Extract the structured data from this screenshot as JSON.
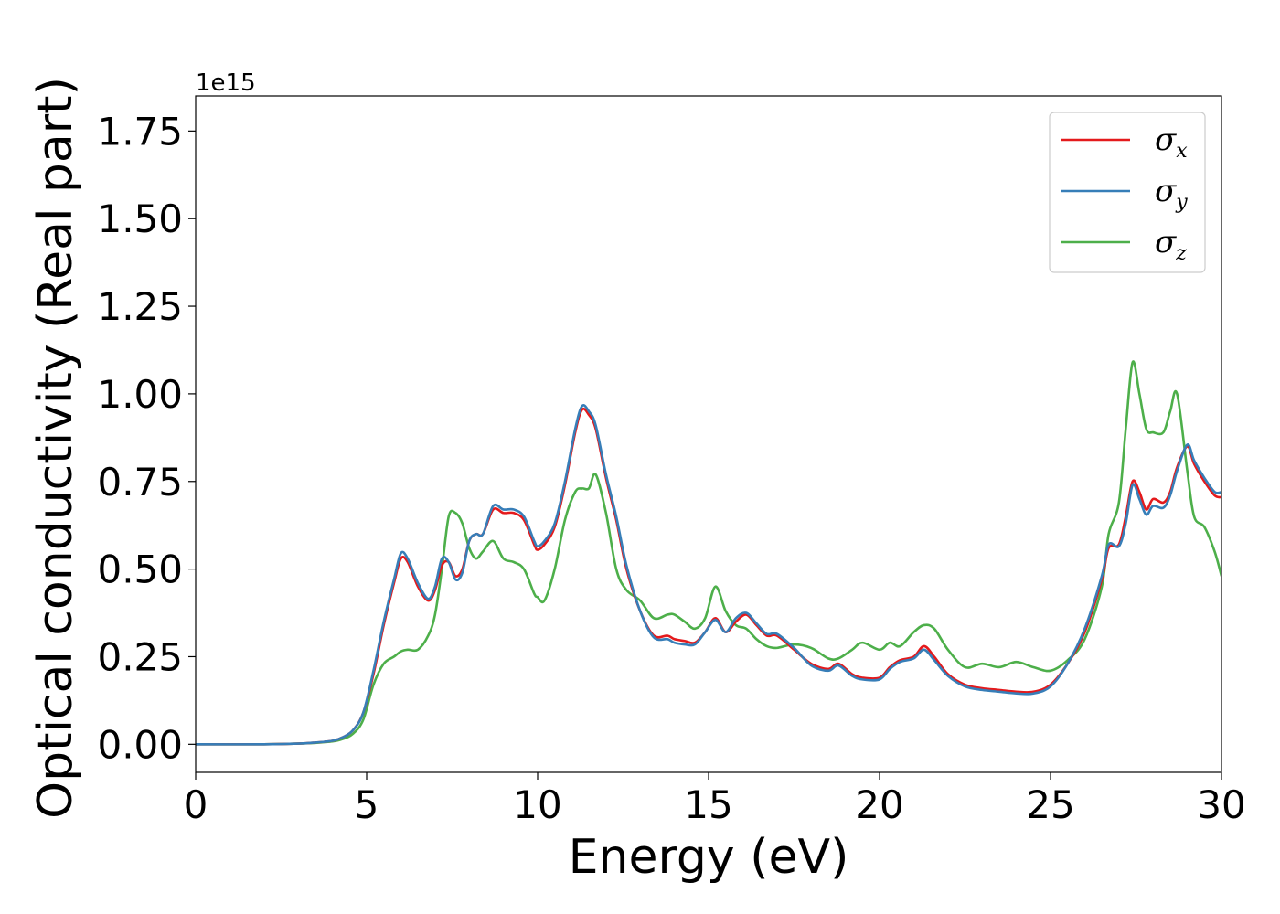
{
  "chart_data": {
    "type": "line",
    "xlabel": "Energy (eV)",
    "ylabel": "Optical conductivity (Real part)",
    "y_offset_text": "1e15",
    "xlim": [
      0,
      30
    ],
    "ylim": [
      -0.08,
      1.85
    ],
    "y_scale_factor": 1000000000000000.0,
    "x_ticks": [
      0,
      5,
      10,
      15,
      20,
      25,
      30
    ],
    "y_ticks": [
      0.0,
      0.25,
      0.5,
      0.75,
      1.0,
      1.25,
      1.5,
      1.75
    ],
    "x_tick_labels": [
      "0",
      "5",
      "10",
      "15",
      "20",
      "25",
      "30"
    ],
    "y_tick_labels": [
      "0.00",
      "0.25",
      "0.50",
      "0.75",
      "1.00",
      "1.25",
      "1.50",
      "1.75"
    ],
    "grid": false,
    "legend_position": "top-right",
    "series": [
      {
        "name": "σx",
        "symbol": "σ",
        "subscript": "x",
        "color": "#e41a1c",
        "x": [
          0,
          2,
          3,
          3.5,
          4,
          4.3,
          4.6,
          4.9,
          5.2,
          5.5,
          5.8,
          6.0,
          6.2,
          6.5,
          6.8,
          7.0,
          7.2,
          7.4,
          7.6,
          7.8,
          8.0,
          8.2,
          8.4,
          8.7,
          9.0,
          9.3,
          9.6,
          9.9,
          10.0,
          10.2,
          10.5,
          10.8,
          11.1,
          11.3,
          11.5,
          11.7,
          12.0,
          12.3,
          12.6,
          13.0,
          13.4,
          13.8,
          14.0,
          14.3,
          14.6,
          14.9,
          15.2,
          15.5,
          15.8,
          16.1,
          16.4,
          16.7,
          17.0,
          17.5,
          18.0,
          18.5,
          18.8,
          19.2,
          19.5,
          20.0,
          20.3,
          20.6,
          21.0,
          21.3,
          21.6,
          22.0,
          22.5,
          23.0,
          23.5,
          24.0,
          24.5,
          25.0,
          25.5,
          26.0,
          26.5,
          26.7,
          27.0,
          27.2,
          27.4,
          27.6,
          27.8,
          28.0,
          28.3,
          28.5,
          28.7,
          29.0,
          29.2,
          29.5,
          29.8,
          30.0
        ],
        "y": [
          0,
          0,
          0.002,
          0.005,
          0.01,
          0.02,
          0.04,
          0.09,
          0.2,
          0.34,
          0.46,
          0.53,
          0.52,
          0.45,
          0.41,
          0.44,
          0.51,
          0.52,
          0.48,
          0.5,
          0.58,
          0.6,
          0.6,
          0.67,
          0.66,
          0.66,
          0.64,
          0.57,
          0.555,
          0.57,
          0.62,
          0.74,
          0.89,
          0.955,
          0.94,
          0.9,
          0.76,
          0.64,
          0.5,
          0.38,
          0.31,
          0.31,
          0.3,
          0.295,
          0.29,
          0.32,
          0.36,
          0.32,
          0.35,
          0.37,
          0.34,
          0.31,
          0.31,
          0.27,
          0.23,
          0.215,
          0.23,
          0.2,
          0.19,
          0.19,
          0.22,
          0.24,
          0.25,
          0.28,
          0.25,
          0.2,
          0.17,
          0.16,
          0.155,
          0.15,
          0.15,
          0.17,
          0.23,
          0.32,
          0.47,
          0.56,
          0.57,
          0.65,
          0.75,
          0.72,
          0.67,
          0.7,
          0.69,
          0.72,
          0.79,
          0.85,
          0.8,
          0.75,
          0.71,
          0.705
        ]
      },
      {
        "name": "σy",
        "symbol": "σ",
        "subscript": "y",
        "color": "#377eb8",
        "x": [
          0,
          2,
          3,
          3.5,
          4,
          4.3,
          4.6,
          4.9,
          5.2,
          5.5,
          5.8,
          6.0,
          6.2,
          6.5,
          6.8,
          7.0,
          7.2,
          7.4,
          7.6,
          7.8,
          8.0,
          8.2,
          8.4,
          8.7,
          9.0,
          9.3,
          9.6,
          9.9,
          10.0,
          10.2,
          10.5,
          10.8,
          11.1,
          11.3,
          11.5,
          11.7,
          12.0,
          12.3,
          12.6,
          13.0,
          13.4,
          13.8,
          14.0,
          14.3,
          14.6,
          14.9,
          15.2,
          15.5,
          15.8,
          16.1,
          16.4,
          16.7,
          17.0,
          17.5,
          18.0,
          18.5,
          18.8,
          19.2,
          19.5,
          20.0,
          20.3,
          20.6,
          21.0,
          21.3,
          21.6,
          22.0,
          22.5,
          23.0,
          23.5,
          24.0,
          24.5,
          25.0,
          25.5,
          26.0,
          26.5,
          26.7,
          27.0,
          27.2,
          27.4,
          27.6,
          27.8,
          28.0,
          28.3,
          28.5,
          28.7,
          29.0,
          29.2,
          29.5,
          29.8,
          30.0
        ],
        "y": [
          0,
          0,
          0.002,
          0.005,
          0.01,
          0.02,
          0.04,
          0.09,
          0.21,
          0.35,
          0.47,
          0.545,
          0.53,
          0.46,
          0.415,
          0.45,
          0.53,
          0.52,
          0.47,
          0.49,
          0.58,
          0.6,
          0.6,
          0.68,
          0.67,
          0.67,
          0.65,
          0.58,
          0.565,
          0.58,
          0.63,
          0.75,
          0.9,
          0.965,
          0.95,
          0.91,
          0.77,
          0.65,
          0.51,
          0.38,
          0.305,
          0.3,
          0.29,
          0.285,
          0.285,
          0.32,
          0.355,
          0.32,
          0.36,
          0.375,
          0.345,
          0.315,
          0.315,
          0.275,
          0.225,
          0.21,
          0.225,
          0.195,
          0.185,
          0.185,
          0.215,
          0.235,
          0.245,
          0.27,
          0.24,
          0.195,
          0.165,
          0.155,
          0.15,
          0.145,
          0.145,
          0.165,
          0.23,
          0.33,
          0.48,
          0.57,
          0.565,
          0.63,
          0.74,
          0.7,
          0.655,
          0.68,
          0.675,
          0.71,
          0.78,
          0.855,
          0.81,
          0.76,
          0.72,
          0.72
        ]
      },
      {
        "name": "σz",
        "symbol": "σ",
        "subscript": "z",
        "color": "#4daf4a",
        "x": [
          0,
          2,
          3,
          3.5,
          4,
          4.3,
          4.6,
          4.9,
          5.2,
          5.5,
          5.8,
          6.0,
          6.2,
          6.5,
          6.8,
          7.0,
          7.2,
          7.4,
          7.6,
          7.8,
          8.0,
          8.2,
          8.4,
          8.7,
          9.0,
          9.3,
          9.6,
          9.9,
          10.0,
          10.2,
          10.5,
          10.8,
          11.1,
          11.3,
          11.5,
          11.7,
          12.0,
          12.3,
          12.6,
          13.0,
          13.4,
          13.8,
          14.0,
          14.3,
          14.6,
          14.9,
          15.2,
          15.5,
          15.8,
          16.1,
          16.4,
          16.7,
          17.0,
          17.5,
          18.0,
          18.5,
          18.8,
          19.2,
          19.5,
          20.0,
          20.3,
          20.6,
          21.0,
          21.3,
          21.6,
          22.0,
          22.5,
          23.0,
          23.5,
          24.0,
          24.5,
          25.0,
          25.5,
          26.0,
          26.5,
          26.7,
          27.0,
          27.2,
          27.4,
          27.6,
          27.8,
          28.0,
          28.3,
          28.5,
          28.7,
          29.0,
          29.2,
          29.5,
          29.8,
          30.0
        ],
        "y": [
          0,
          0,
          0.002,
          0.004,
          0.008,
          0.015,
          0.03,
          0.07,
          0.17,
          0.23,
          0.25,
          0.265,
          0.27,
          0.27,
          0.31,
          0.37,
          0.5,
          0.65,
          0.66,
          0.63,
          0.56,
          0.53,
          0.55,
          0.58,
          0.53,
          0.52,
          0.5,
          0.43,
          0.42,
          0.41,
          0.5,
          0.64,
          0.72,
          0.73,
          0.73,
          0.77,
          0.66,
          0.5,
          0.44,
          0.41,
          0.36,
          0.37,
          0.37,
          0.35,
          0.33,
          0.36,
          0.45,
          0.38,
          0.34,
          0.33,
          0.3,
          0.28,
          0.275,
          0.285,
          0.275,
          0.245,
          0.245,
          0.27,
          0.29,
          0.27,
          0.29,
          0.28,
          0.32,
          0.34,
          0.33,
          0.27,
          0.22,
          0.23,
          0.22,
          0.235,
          0.22,
          0.21,
          0.24,
          0.3,
          0.45,
          0.6,
          0.69,
          0.9,
          1.09,
          1.0,
          0.9,
          0.89,
          0.89,
          0.95,
          1.0,
          0.78,
          0.65,
          0.62,
          0.55,
          0.48
        ]
      }
    ]
  }
}
